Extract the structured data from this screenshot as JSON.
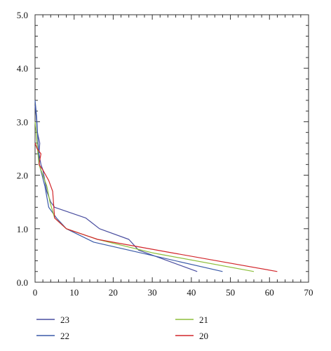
{
  "chart_data": {
    "type": "line",
    "title": "",
    "xlabel": "",
    "ylabel": "",
    "xlim": [
      0,
      70
    ],
    "ylim": [
      0,
      5.0
    ],
    "x_ticks": [
      "0",
      "10",
      "20",
      "30",
      "40",
      "50",
      "60",
      "70"
    ],
    "y_ticks": [
      "0.0",
      "1.0",
      "2.0",
      "3.0",
      "4.0",
      "5.0"
    ],
    "grid": false,
    "legend_position": "bottom",
    "series": [
      {
        "name": "23",
        "color": "#4a4ea0",
        "points": [
          [
            0.0,
            3.3
          ],
          [
            0.3,
            3.1
          ],
          [
            0.6,
            2.8
          ],
          [
            1.2,
            2.6
          ],
          [
            1.0,
            2.4
          ],
          [
            1.5,
            2.2
          ],
          [
            2.0,
            2.1
          ],
          [
            2.5,
            1.9
          ],
          [
            3.0,
            1.7
          ],
          [
            3.5,
            1.6
          ],
          [
            4.0,
            1.5
          ],
          [
            5.0,
            1.4
          ],
          [
            13.0,
            1.2
          ],
          [
            16.5,
            1.0
          ],
          [
            24.0,
            0.8
          ],
          [
            26.5,
            0.6
          ],
          [
            41.5,
            0.2
          ]
        ]
      },
      {
        "name": "22",
        "color": "#3a5aa8",
        "points": [
          [
            0.0,
            3.4
          ],
          [
            0.4,
            3.1
          ],
          [
            0.7,
            2.7
          ],
          [
            1.1,
            2.2
          ],
          [
            1.8,
            2.0
          ],
          [
            2.5,
            1.8
          ],
          [
            3.0,
            1.6
          ],
          [
            3.5,
            1.4
          ],
          [
            5.5,
            1.2
          ],
          [
            8.0,
            1.0
          ],
          [
            15.0,
            0.75
          ],
          [
            30.0,
            0.5
          ],
          [
            48.0,
            0.2
          ]
        ]
      },
      {
        "name": "21",
        "color": "#8dbf3c",
        "points": [
          [
            0.0,
            3.0
          ],
          [
            0.3,
            2.8
          ],
          [
            0.6,
            2.5
          ],
          [
            1.0,
            2.2
          ],
          [
            2.0,
            2.0
          ],
          [
            3.0,
            1.8
          ],
          [
            3.8,
            1.5
          ],
          [
            5.0,
            1.2
          ],
          [
            8.0,
            1.0
          ],
          [
            16.0,
            0.8
          ],
          [
            30.0,
            0.55
          ],
          [
            56.0,
            0.2
          ]
        ]
      },
      {
        "name": "20",
        "color": "#d2262b",
        "points": [
          [
            0.0,
            2.6
          ],
          [
            0.5,
            2.5
          ],
          [
            1.5,
            2.4
          ],
          [
            1.0,
            2.2
          ],
          [
            2.0,
            2.1
          ],
          [
            3.5,
            1.9
          ],
          [
            4.5,
            1.7
          ],
          [
            5.0,
            1.2
          ],
          [
            8.0,
            1.0
          ],
          [
            16.0,
            0.8
          ],
          [
            35.0,
            0.55
          ],
          [
            62.0,
            0.2
          ]
        ]
      }
    ]
  }
}
